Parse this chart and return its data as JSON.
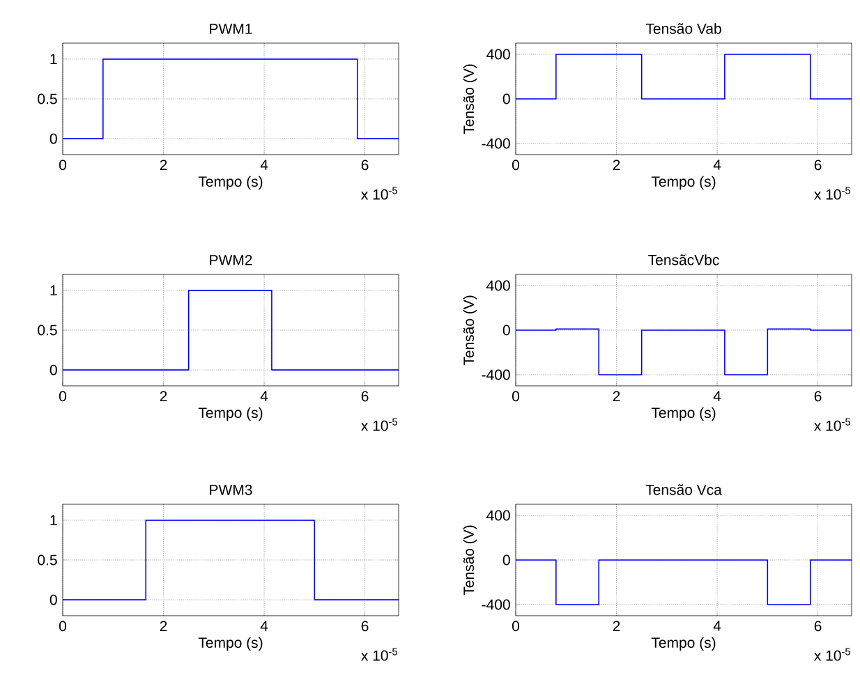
{
  "chart_data": [
    {
      "type": "step",
      "title": "PWM1",
      "xlabel": "Tempo (s)",
      "annotations": [
        "x 10$^{-5}$"
      ],
      "color": "#0000ff",
      "x": [
        0,
        0.8,
        5.85,
        6.67
      ],
      "values": [
        0,
        1,
        0,
        0
      ],
      "xlim": [
        0,
        6.67
      ],
      "ylim": [
        -0.2,
        1.2
      ],
      "xticks": [
        0,
        2,
        4,
        6
      ],
      "yticks": [
        0,
        0.5,
        1
      ],
      "grid": true
    },
    {
      "type": "step",
      "title": "Tensão Vab",
      "xlabel": "Tempo (s)",
      "ylabel": "Tensão (V)",
      "annotations": [
        "x 10$^{-5}$"
      ],
      "color": "#0000ff",
      "x": [
        0,
        0.8,
        2.5,
        4.15,
        5.85,
        6.67
      ],
      "values": [
        0,
        400,
        0,
        400,
        0,
        0
      ],
      "xlim": [
        0,
        6.67
      ],
      "ylim": [
        -500,
        500
      ],
      "xticks": [
        0,
        2,
        4,
        6
      ],
      "yticks": [
        -400,
        0,
        400
      ],
      "grid": true
    },
    {
      "type": "step",
      "title": "PWM2",
      "xlabel": "Tempo (s)",
      "annotations": [
        "x 10$^{-5}$"
      ],
      "color": "#0000ff",
      "x": [
        0,
        2.5,
        4.15,
        6.67
      ],
      "values": [
        0,
        1,
        0,
        0
      ],
      "xlim": [
        0,
        6.67
      ],
      "ylim": [
        -0.2,
        1.2
      ],
      "xticks": [
        0,
        2,
        4,
        6
      ],
      "yticks": [
        0,
        0.5,
        1
      ],
      "grid": true
    },
    {
      "type": "step",
      "title": "TensãcVbc",
      "xlabel": "Tempo (s)",
      "ylabel": "Tensão (V)",
      "annotations": [
        "x 10$^{-5}$"
      ],
      "color": "#0000ff",
      "x": [
        0,
        0.8,
        1.65,
        2.5,
        4.15,
        5.0,
        5.85,
        6.67
      ],
      "values": [
        0,
        10,
        -400,
        0,
        -400,
        10,
        0,
        0
      ],
      "xlim": [
        0,
        6.67
      ],
      "ylim": [
        -500,
        500
      ],
      "xticks": [
        0,
        2,
        4,
        6
      ],
      "yticks": [
        -400,
        0,
        400
      ],
      "grid": true
    },
    {
      "type": "step",
      "title": "PWM3",
      "xlabel": "Tempo (s)",
      "annotations": [
        "x 10$^{-5}$"
      ],
      "color": "#0000ff",
      "x": [
        0,
        1.65,
        5.0,
        6.67
      ],
      "values": [
        0,
        1,
        0,
        0
      ],
      "xlim": [
        0,
        6.67
      ],
      "ylim": [
        -0.2,
        1.2
      ],
      "xticks": [
        0,
        2,
        4,
        6
      ],
      "yticks": [
        0,
        0.5,
        1
      ],
      "grid": true
    },
    {
      "type": "step",
      "title": "Tensão Vca",
      "xlabel": "Tempo (s)",
      "ylabel": "Tensão (V)",
      "annotations": [
        "x 10$^{-5}$"
      ],
      "color": "#0000ff",
      "x": [
        0,
        0.8,
        1.65,
        5.0,
        5.85,
        6.67
      ],
      "values": [
        0,
        -400,
        0,
        -400,
        0,
        0
      ],
      "xlim": [
        0,
        6.67
      ],
      "ylim": [
        -500,
        500
      ],
      "xticks": [
        0,
        2,
        4,
        6
      ],
      "yticks": [
        -400,
        0,
        400
      ],
      "grid": true
    }
  ]
}
